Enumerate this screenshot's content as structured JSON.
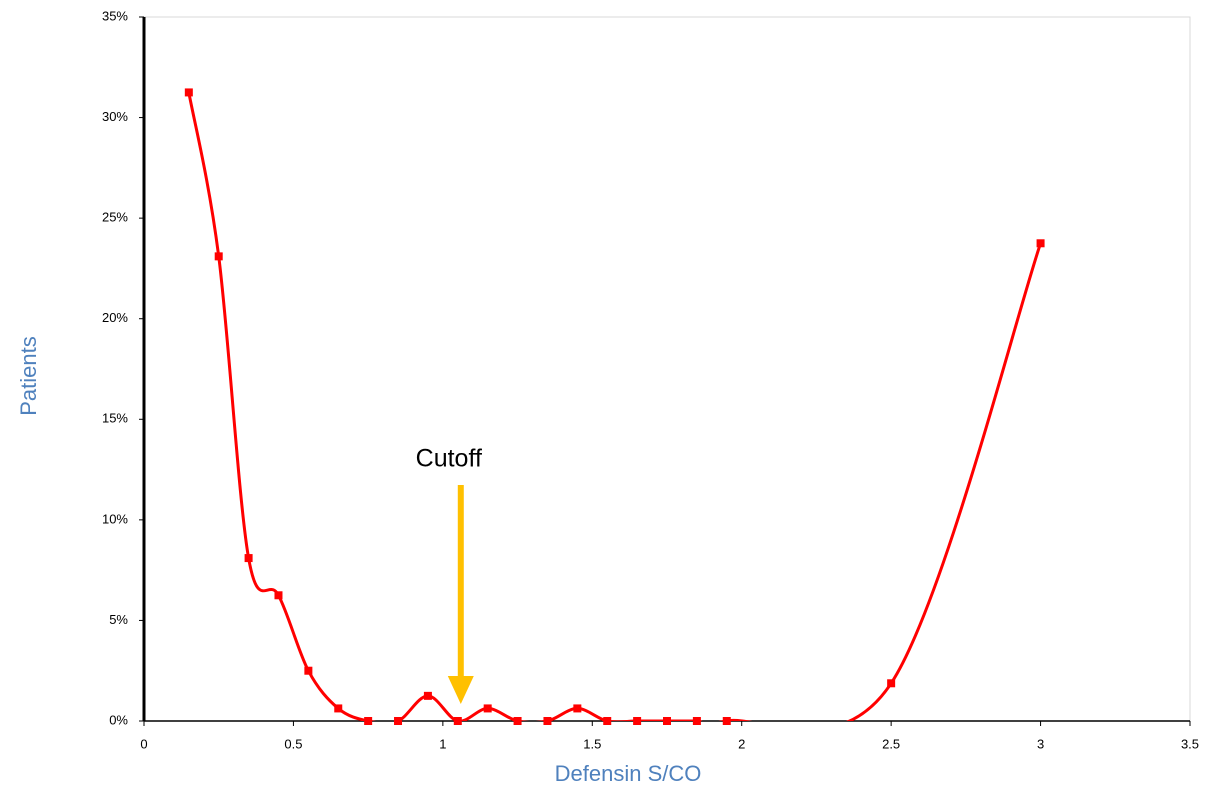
{
  "chart_data": {
    "type": "line",
    "smooth": true,
    "x_label": "Defensin S/CO",
    "y_label": "Patients",
    "x": [
      0.15,
      0.25,
      0.35,
      0.45,
      0.55,
      0.65,
      0.75,
      0.85,
      0.95,
      1.05,
      1.15,
      1.25,
      1.35,
      1.45,
      1.55,
      1.65,
      1.75,
      1.85,
      1.95,
      2.5,
      3.0
    ],
    "series": [
      {
        "color": "#ff0000",
        "values": [
          31.25,
          23.1,
          8.1,
          6.25,
          2.5,
          0.625,
          0,
          0,
          1.25,
          0,
          0.625,
          0,
          0,
          0.625,
          0,
          0,
          0,
          0,
          0,
          1.875,
          23.75
        ]
      }
    ],
    "xlim": [
      0,
      3.5
    ],
    "xticks": [
      0,
      0.5,
      1,
      1.5,
      2,
      2.5,
      3,
      3.5
    ],
    "ylim": [
      0,
      35
    ],
    "yticks": [
      {
        "value": 0,
        "label": "0%"
      },
      {
        "value": 5,
        "label": "5%"
      },
      {
        "value": 10,
        "label": "10%"
      },
      {
        "value": 15,
        "label": "15%"
      },
      {
        "value": 20,
        "label": "20%"
      },
      {
        "value": 25,
        "label": "25%"
      },
      {
        "value": 30,
        "label": "30%"
      },
      {
        "value": 35,
        "label": "35%"
      }
    ],
    "annotation": {
      "text": "Cutoff",
      "x": 1.06,
      "color": "#ffc000"
    },
    "grid": false
  }
}
